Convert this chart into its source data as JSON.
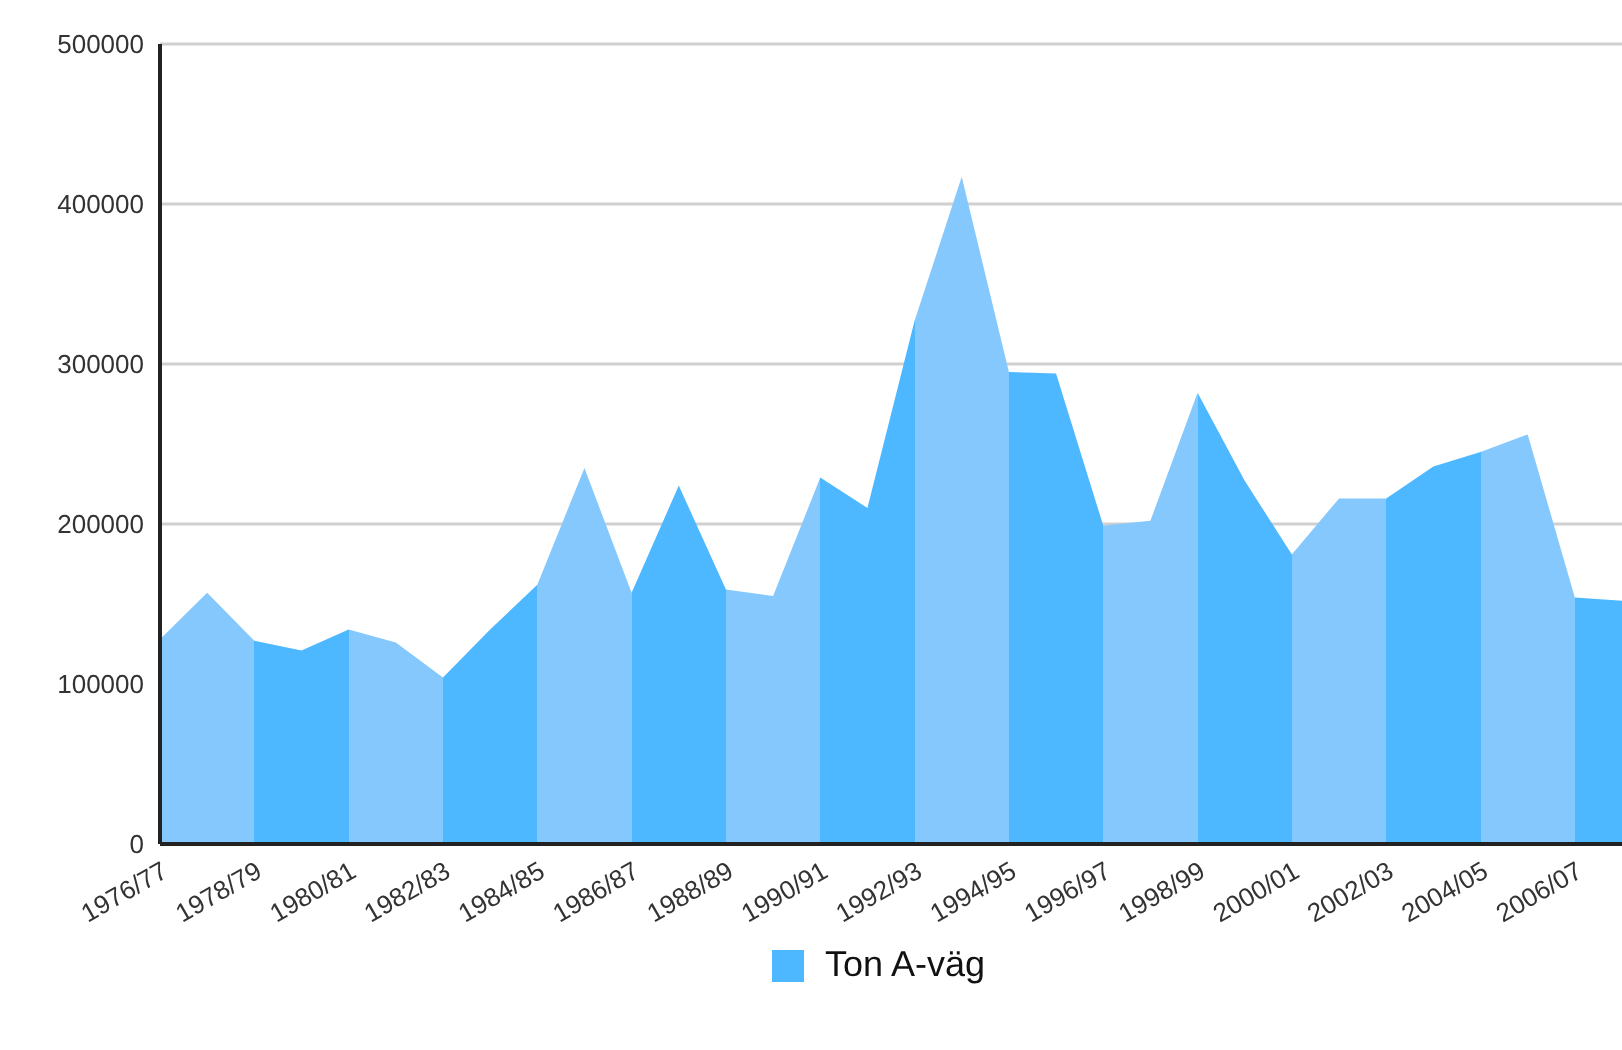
{
  "chart_data": {
    "type": "area",
    "categories": [
      "1976/77",
      null,
      "1978/79",
      null,
      "1980/81",
      null,
      "1982/83",
      null,
      "1984/85",
      null,
      "1986/87",
      null,
      "1988/89",
      null,
      "1990/91",
      null,
      "1992/93",
      null,
      "1994/95",
      null,
      "1996/97",
      null,
      "1998/99",
      null,
      "2000/01",
      null,
      "2002/03",
      null,
      "2004/05",
      null,
      "2006/07",
      null
    ],
    "series": [
      {
        "name": "Ton A-väg",
        "color": "#4db8ff",
        "values": [
          128000,
          157000,
          127000,
          121000,
          134000,
          126000,
          104000,
          134000,
          162000,
          235000,
          157000,
          224000,
          159000,
          155000,
          229000,
          210000,
          327000,
          417000,
          295000,
          294000,
          199000,
          202000,
          282000,
          227000,
          181000,
          216000,
          216000,
          236000,
          245000,
          256000,
          154000,
          152000
        ],
        "colors": [
          "#85c8fd",
          "#85c8fd",
          "#4db8ff",
          "#4db8ff",
          "#85c8fd",
          "#85c8fd",
          "#4db8ff",
          "#4db8ff",
          "#85c8fd",
          "#85c8fd",
          "#4db8ff",
          "#4db8ff",
          "#85c8fd",
          "#85c8fd",
          "#4db8ff",
          "#4db8ff",
          "#85c8fd",
          "#85c8fd",
          "#4db8ff",
          "#4db8ff",
          "#85c8fd",
          "#85c8fd",
          "#4db8ff",
          "#4db8ff",
          "#85c8fd",
          "#85c8fd",
          "#4db8ff",
          "#4db8ff",
          "#85c8fd",
          "#85c8fd",
          "#4db8ff",
          "#4db8ff"
        ]
      }
    ],
    "ylim": [
      0,
      500000
    ],
    "yticks": [
      0,
      100000,
      200000,
      300000,
      400000,
      500000
    ],
    "grid": "y",
    "legend": "bottom"
  }
}
